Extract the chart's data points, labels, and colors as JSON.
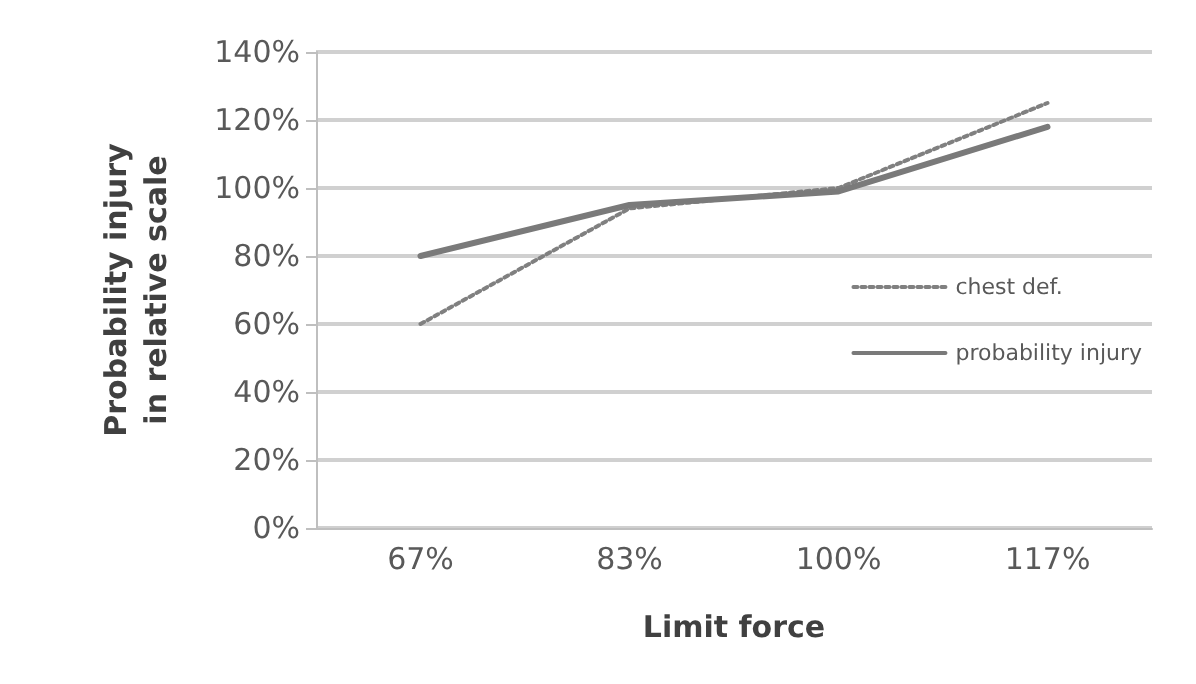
{
  "chart_data": {
    "type": "line",
    "xlabel": "Limit force",
    "ylabel": "Probability injury\nin relative scale",
    "categories": [
      "67%",
      "83%",
      "100%",
      "117%"
    ],
    "series": [
      {
        "name": "chest def.",
        "color": "#808080",
        "line_style": "dotted",
        "values": [
          60,
          94,
          100,
          125
        ]
      },
      {
        "name": "probability injury",
        "color": "#7a7a7a",
        "line_style": "solid",
        "values": [
          80,
          95,
          99,
          118
        ]
      }
    ],
    "ylim": [
      0,
      140
    ],
    "yticks": [
      {
        "value": 0,
        "label": "0%"
      },
      {
        "value": 20,
        "label": "20%"
      },
      {
        "value": 40,
        "label": "40%"
      },
      {
        "value": 60,
        "label": "60%"
      },
      {
        "value": 80,
        "label": "80%"
      },
      {
        "value": 100,
        "label": "100%"
      },
      {
        "value": 120,
        "label": "120%"
      },
      {
        "value": 140,
        "label": "140%"
      }
    ],
    "grid": "y",
    "legend": "right",
    "marker": "none"
  }
}
